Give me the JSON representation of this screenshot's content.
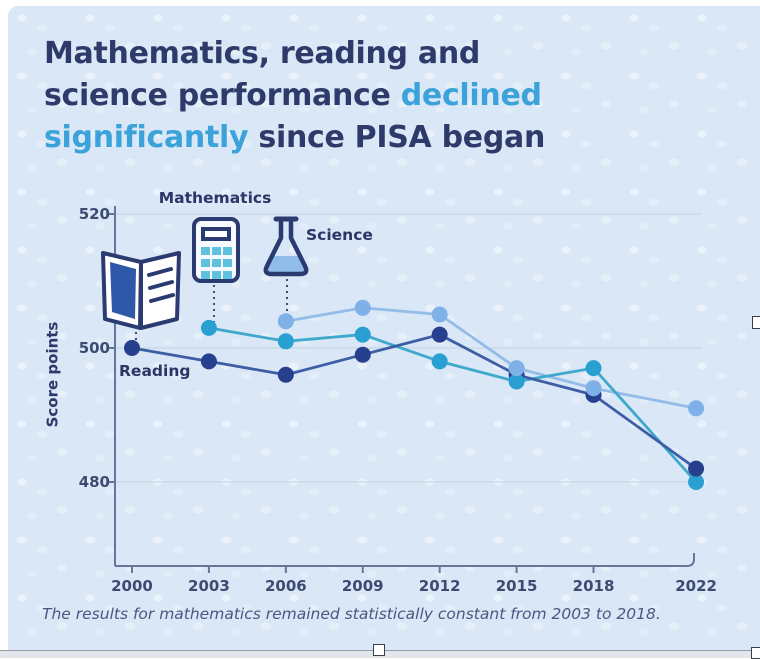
{
  "card": {
    "background": "#d9e7f6"
  },
  "title": {
    "line1": "Mathematics, reading and",
    "line2_normal": "science performance ",
    "line2_accent": "declined",
    "line3_accent": "significantly",
    "line3_normal": " since PISA began",
    "color_normal": "#2e3a69",
    "color_accent": "#3ba3da"
  },
  "chart_data": {
    "type": "line",
    "ylabel": "Score points",
    "x": [
      2000,
      2003,
      2006,
      2009,
      2012,
      2015,
      2018,
      2022
    ],
    "x_tick_labels": [
      "2000",
      "2003",
      "2006",
      "2009",
      "2012",
      "2015",
      "2018",
      "2022"
    ],
    "y_ticks": [
      480,
      500,
      520
    ],
    "ylim": [
      474,
      524
    ],
    "grid": "horizontal-only",
    "legend_position": "inline-annotations",
    "series": [
      {
        "name": "Reading",
        "line_color": "#3d5da5",
        "dot_color": "#26408e",
        "values": [
          500,
          498,
          496,
          499,
          502,
          496,
          493,
          482
        ]
      },
      {
        "name": "Mathematics",
        "line_color": "#3ea9cb",
        "dot_color": "#2aa0d2",
        "values": [
          null,
          503,
          501,
          502,
          498,
          495,
          497,
          480
        ]
      },
      {
        "name": "Science",
        "line_color": "#93bce9",
        "dot_color": "#7fb0e8",
        "values": [
          null,
          null,
          504,
          506,
          505,
          497,
          494,
          491
        ]
      }
    ],
    "series_labels": {
      "reading": "Reading",
      "mathematics": "Mathematics",
      "science": "Science"
    }
  },
  "icons": {
    "reading": "open-book-icon",
    "mathematics": "calculator-icon",
    "science": "erlenmeyer-flask-icon"
  },
  "footnote": {
    "text": "The results for mathematics remained statistically constant from 2003 to 2018.",
    "color": "#4a5880"
  },
  "axis": {
    "color": "#66769a",
    "tick_label_color": "#3d4a72",
    "grid_color": "#c9d5e4"
  }
}
